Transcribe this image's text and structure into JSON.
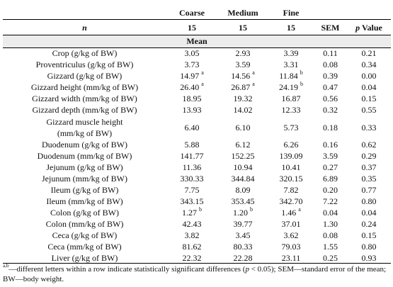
{
  "header": {
    "row1": [
      "",
      "Coarse",
      "Medium",
      "Fine",
      "",
      ""
    ],
    "row2": [
      "n",
      "15",
      "15",
      "15",
      "SEM",
      "p Value"
    ],
    "subheader": "Mean"
  },
  "rows": [
    {
      "label": "Crop (g/kg of BW)",
      "coarse": "3.05",
      "medium": "2.93",
      "fine": "3.39",
      "sem": "0.11",
      "p": "0.21",
      "sup_c": "",
      "sup_m": "",
      "sup_f": ""
    },
    {
      "label": "Proventriculus (g/kg of BW)",
      "coarse": "3.73",
      "medium": "3.59",
      "fine": "3.31",
      "sem": "0.08",
      "p": "0.34",
      "sup_c": "",
      "sup_m": "",
      "sup_f": ""
    },
    {
      "label": "Gizzard (g/kg of BW)",
      "coarse": "14.97",
      "medium": "14.56",
      "fine": "11.84",
      "sem": "0.39",
      "p": "0.00",
      "sup_c": "a",
      "sup_m": "a",
      "sup_f": "b"
    },
    {
      "label": "Gizzard height (mm/kg of BW)",
      "coarse": "26.40",
      "medium": "26.87",
      "fine": "24.19",
      "sem": "0.47",
      "p": "0.04",
      "sup_c": "a",
      "sup_m": "a",
      "sup_f": "b"
    },
    {
      "label": "Gizzard width (mm/kg of BW)",
      "coarse": "18.95",
      "medium": "19.32",
      "fine": "16.87",
      "sem": "0.56",
      "p": "0.15",
      "sup_c": "",
      "sup_m": "",
      "sup_f": ""
    },
    {
      "label": "Gizzard depth (mm/kg of BW)",
      "coarse": "13.93",
      "medium": "14.02",
      "fine": "12.33",
      "sem": "0.32",
      "p": "0.55",
      "sup_c": "",
      "sup_m": "",
      "sup_f": ""
    },
    {
      "label": "Gizzard muscle height",
      "label2": "(mm/kg of BW)",
      "coarse": "6.40",
      "medium": "6.10",
      "fine": "5.73",
      "sem": "0.18",
      "p": "0.33",
      "sup_c": "",
      "sup_m": "",
      "sup_f": ""
    },
    {
      "label": "Duodenum (g/kg of BW)",
      "coarse": "5.88",
      "medium": "6.12",
      "fine": "6.26",
      "sem": "0.16",
      "p": "0.62",
      "sup_c": "",
      "sup_m": "",
      "sup_f": ""
    },
    {
      "label": "Duodenum (mm/kg of BW)",
      "coarse": "141.77",
      "medium": "152.25",
      "fine": "139.09",
      "sem": "3.59",
      "p": "0.29",
      "sup_c": "",
      "sup_m": "",
      "sup_f": ""
    },
    {
      "label": "Jejunum (g/kg of BW)",
      "coarse": "11.36",
      "medium": "10.94",
      "fine": "10.41",
      "sem": "0.27",
      "p": "0.37",
      "sup_c": "",
      "sup_m": "",
      "sup_f": ""
    },
    {
      "label": "Jejunum (mm/kg of BW)",
      "coarse": "330.33",
      "medium": "344.84",
      "fine": "320.15",
      "sem": "6.89",
      "p": "0.35",
      "sup_c": "",
      "sup_m": "",
      "sup_f": ""
    },
    {
      "label": "Ileum (g/kg of BW)",
      "coarse": "7.75",
      "medium": "8.09",
      "fine": "7.82",
      "sem": "0.20",
      "p": "0.77",
      "sup_c": "",
      "sup_m": "",
      "sup_f": ""
    },
    {
      "label": "Ileum (mm/kg of BW)",
      "coarse": "343.15",
      "medium": "353.45",
      "fine": "342.70",
      "sem": "7.22",
      "p": "0.80",
      "sup_c": "",
      "sup_m": "",
      "sup_f": ""
    },
    {
      "label": "Colon (g/kg of BW)",
      "coarse": "1.27",
      "medium": "1.20",
      "fine": "1.46",
      "sem": "0.04",
      "p": "0.04",
      "sup_c": "b",
      "sup_m": "b",
      "sup_f": "a"
    },
    {
      "label": "Colon (mm/kg of BW)",
      "coarse": "42.43",
      "medium": "39.77",
      "fine": "37.01",
      "sem": "1.30",
      "p": "0.24",
      "sup_c": "",
      "sup_m": "",
      "sup_f": ""
    },
    {
      "label": "Ceca (g/kg of BW)",
      "coarse": "3.82",
      "medium": "3.45",
      "fine": "3.62",
      "sem": "0.08",
      "p": "0.15",
      "sup_c": "",
      "sup_m": "",
      "sup_f": ""
    },
    {
      "label": "Ceca (mm/kg of BW)",
      "coarse": "81.62",
      "medium": "80.33",
      "fine": "79.03",
      "sem": "1.55",
      "p": "0.80",
      "sup_c": "",
      "sup_m": "",
      "sup_f": ""
    },
    {
      "label": "Liver (g/kg of BW)",
      "coarse": "22.32",
      "medium": "22.28",
      "fine": "23.11",
      "sem": "0.25",
      "p": "0.93",
      "sup_c": "",
      "sup_m": "",
      "sup_f": ""
    }
  ],
  "footnote": {
    "sup": "a,b",
    "text1": "—different letters within a row indicate statistically significant differences (",
    "p_italic": "p",
    "text2": " < 0.05); SEM—standard error of the mean; BW—body weight."
  }
}
